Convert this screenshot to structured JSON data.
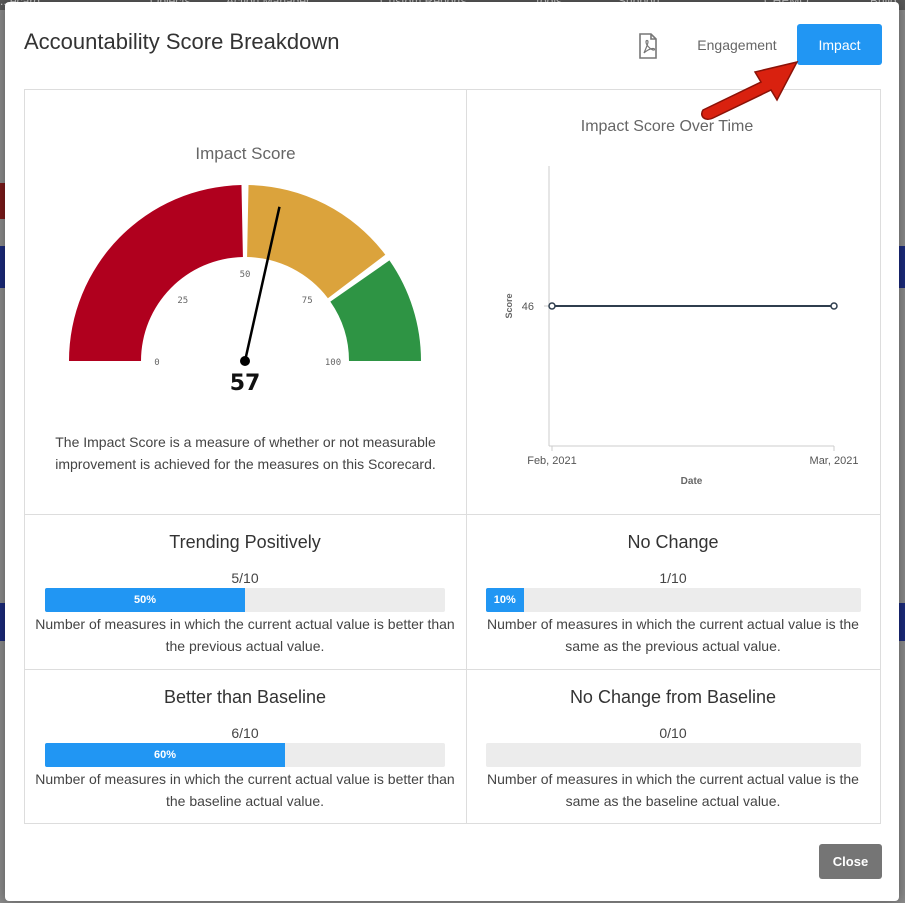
{
  "background": {
    "nav_items": [
      "...ecard",
      "Objects",
      "Action Manager",
      "Custom Reports",
      "Tools",
      "Support",
      "CHEMO",
      "Build"
    ]
  },
  "modal": {
    "title": "Accountability Score Breakdown",
    "pdf_icon": "pdf-icon",
    "tabs": {
      "engagement": "Engagement",
      "impact": "Impact"
    },
    "close_label": "Close"
  },
  "gauge": {
    "title": "Impact Score",
    "value": 57,
    "value_label": "57",
    "min": 0,
    "max": 100,
    "ticks": [
      "0",
      "25",
      "50",
      "75",
      "100"
    ],
    "bands": [
      {
        "from": 0,
        "to": 50,
        "color": "#b0001e"
      },
      {
        "from": 50,
        "to": 80,
        "color": "#dba33c"
      },
      {
        "from": 80,
        "to": 100,
        "color": "#2e9444"
      }
    ],
    "description": "The Impact Score is a measure of whether or not measurable improvement is achieved for the measures on this Scorecard."
  },
  "chart_data": {
    "type": "line",
    "title": "Impact Score Over Time",
    "xlabel": "Date",
    "ylabel": "Score",
    "categories": [
      "Feb, 2021",
      "Mar, 2021"
    ],
    "series": [
      {
        "values": [
          46,
          46
        ]
      }
    ],
    "y_tick_labels": [
      "46"
    ],
    "line_color": "#2f3e4e"
  },
  "metrics": [
    {
      "title": "Trending Positively",
      "count": "5/10",
      "percent": 50,
      "percent_label": "50%",
      "description": "Number of measures in which the current actual value is better than the previous actual value."
    },
    {
      "title": "No Change",
      "count": "1/10",
      "percent": 10,
      "percent_label": "10%",
      "description": "Number of measures in which the current actual value is the same as the previous actual value."
    },
    {
      "title": "Better than Baseline",
      "count": "6/10",
      "percent": 60,
      "percent_label": "60%",
      "description": "Number of measures in which the current actual value is better than the baseline actual value."
    },
    {
      "title": "No Change from Baseline",
      "count": "0/10",
      "percent": 0,
      "percent_label": "",
      "description": "Number of measures in which the current actual value is the same as the baseline actual value."
    }
  ]
}
